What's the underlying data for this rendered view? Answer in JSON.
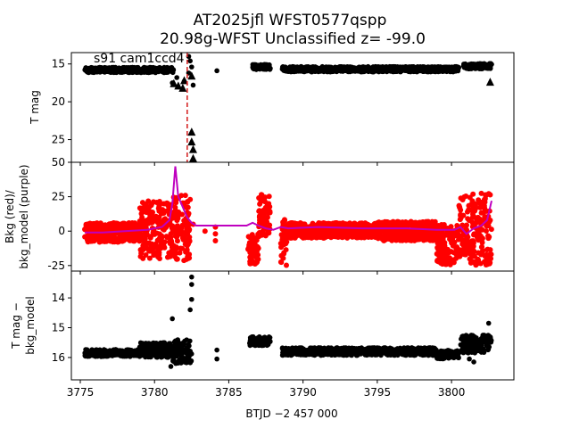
{
  "figure": {
    "title_line1": "AT2025jfl  WFST0577qspp",
    "title_line2": "20.98g-WFST Unclassified z= -99.0",
    "xlabel": "BTJD −2 457 000",
    "annotation": "s91 cam1ccd4"
  },
  "colors": {
    "points": "#000000",
    "bkg_points": "#ff0000",
    "bkg_model": "#bf00bf",
    "marker_line": "#d62728"
  },
  "chart_data": [
    {
      "type": "scatter",
      "panel": "top",
      "ylabel": "T mag",
      "xlim": [
        3774.4,
        3804.2
      ],
      "ylim": [
        28.0,
        13.5
      ],
      "y_inverted": true,
      "xticks": [
        3775,
        3780,
        3785,
        3790,
        3795,
        3800
      ],
      "yticks": [
        15,
        20,
        25
      ],
      "vline_x": 3782.2,
      "segments": [
        {
          "x0": 3775.3,
          "x1": 3781.3,
          "y": 15.8
        },
        {
          "x0": 3786.6,
          "x1": 3787.8,
          "y": 15.4
        },
        {
          "x0": 3788.6,
          "x1": 3800.5,
          "y": 15.7
        },
        {
          "x0": 3800.8,
          "x1": 3802.7,
          "y": 15.3
        }
      ],
      "points": [
        [
          3782.3,
          14.0
        ],
        [
          3782.4,
          14.6
        ],
        [
          3782.5,
          15.4
        ],
        [
          3782.3,
          16.2
        ],
        [
          3784.2,
          15.9
        ],
        [
          3781.5,
          16.8
        ],
        [
          3782.0,
          17.3
        ],
        [
          3781.2,
          17.5
        ],
        [
          3782.6,
          17.8
        ]
      ],
      "upper_limits": [
        [
          3781.3,
          17.6
        ],
        [
          3781.6,
          17.9
        ],
        [
          3781.9,
          18.2
        ],
        [
          3782.0,
          17.2
        ],
        [
          3782.5,
          16.6
        ],
        [
          3782.5,
          24.0
        ],
        [
          3782.5,
          25.3
        ],
        [
          3782.6,
          26.3
        ],
        [
          3782.6,
          27.5
        ],
        [
          3802.6,
          17.4
        ]
      ]
    },
    {
      "type": "scatter",
      "panel": "middle",
      "ylabel": "Bkg (red)/ bkg_model (purple)",
      "ylabel_line1": "Bkg (red)/",
      "ylabel_line2": "bkg_model (purple)",
      "xlim": [
        3774.4,
        3804.2
      ],
      "ylim": [
        -29,
        50
      ],
      "xticks": [
        3775,
        3780,
        3785,
        3790,
        3795,
        3800
      ],
      "yticks": [
        -25,
        0,
        25,
        50
      ],
      "model_line": [
        [
          3775.3,
          -1
        ],
        [
          3776.5,
          -1
        ],
        [
          3778.0,
          0
        ],
        [
          3779.5,
          1
        ],
        [
          3780.5,
          3
        ],
        [
          3781.0,
          8
        ],
        [
          3781.2,
          20
        ],
        [
          3781.4,
          47
        ],
        [
          3781.6,
          25
        ],
        [
          3781.8,
          20
        ],
        [
          3782.0,
          15
        ],
        [
          3782.2,
          10
        ],
        [
          3782.5,
          6
        ],
        [
          3782.8,
          4
        ],
        [
          3786.2,
          4
        ],
        [
          3786.6,
          6
        ],
        [
          3787.0,
          4
        ],
        [
          3787.5,
          2
        ],
        [
          3788.0,
          1
        ],
        [
          3788.5,
          3
        ],
        [
          3789.0,
          2
        ],
        [
          3791.0,
          3
        ],
        [
          3794.0,
          2
        ],
        [
          3797.0,
          2
        ],
        [
          3799.0,
          1
        ],
        [
          3799.8,
          1
        ],
        [
          3800.2,
          1
        ],
        [
          3800.6,
          3
        ],
        [
          3801.0,
          -2
        ],
        [
          3801.5,
          2
        ],
        [
          3802.0,
          4
        ],
        [
          3802.4,
          8
        ],
        [
          3802.7,
          22
        ]
      ],
      "bkg_bands": [
        {
          "x0": 3775.3,
          "x1": 3779.0,
          "lo": -8,
          "hi": 6
        },
        {
          "x0": 3779.0,
          "x1": 3781.2,
          "lo": -20,
          "hi": 22
        },
        {
          "x0": 3781.2,
          "x1": 3782.4,
          "lo": -22,
          "hi": 26
        },
        {
          "x0": 3786.3,
          "x1": 3787.0,
          "lo": -24,
          "hi": -2
        },
        {
          "x0": 3787.0,
          "x1": 3787.8,
          "lo": -4,
          "hi": 27
        },
        {
          "x0": 3788.5,
          "x1": 3788.9,
          "lo": -25,
          "hi": 10
        },
        {
          "x0": 3789.0,
          "x1": 3795.0,
          "lo": -5,
          "hi": 6
        },
        {
          "x0": 3795.0,
          "x1": 3799.0,
          "lo": -7,
          "hi": 7
        },
        {
          "x0": 3799.0,
          "x1": 3800.5,
          "lo": -25,
          "hi": 5
        },
        {
          "x0": 3800.5,
          "x1": 3802.7,
          "lo": -25,
          "hi": 28
        }
      ],
      "bkg_points": [
        [
          3784.1,
          -2
        ],
        [
          3784.1,
          3
        ],
        [
          3784.1,
          -7
        ],
        [
          3783.4,
          0
        ],
        [
          3782.6,
          5
        ]
      ]
    },
    {
      "type": "scatter",
      "panel": "bottom",
      "ylabel": "T mag − bkg_model",
      "ylabel_line1": "T mag −",
      "ylabel_line2": "bkg_model",
      "xlim": [
        3774.4,
        3804.2
      ],
      "ylim": [
        16.75,
        13.1
      ],
      "y_inverted": true,
      "xticks": [
        3775,
        3780,
        3785,
        3790,
        3795,
        3800
      ],
      "yticks": [
        14,
        15,
        16
      ],
      "segments": [
        {
          "x0": 3775.3,
          "x1": 3779.0,
          "y": 15.85,
          "spread": 0.12
        },
        {
          "x0": 3779.0,
          "x1": 3781.2,
          "y": 15.75,
          "spread": 0.25
        },
        {
          "x0": 3781.2,
          "x1": 3782.5,
          "y": 15.8,
          "spread": 0.4
        },
        {
          "x0": 3786.4,
          "x1": 3787.8,
          "y": 15.45,
          "spread": 0.15
        },
        {
          "x0": 3788.6,
          "x1": 3799.0,
          "y": 15.8,
          "spread": 0.13
        },
        {
          "x0": 3799.0,
          "x1": 3800.5,
          "y": 15.9,
          "spread": 0.15
        },
        {
          "x0": 3800.6,
          "x1": 3802.7,
          "y": 15.55,
          "spread": 0.3
        }
      ],
      "points": [
        [
          3782.5,
          13.3
        ],
        [
          3782.5,
          13.55
        ],
        [
          3782.5,
          14.05
        ],
        [
          3782.4,
          14.4
        ],
        [
          3781.2,
          14.7
        ],
        [
          3784.2,
          15.75
        ],
        [
          3784.2,
          16.05
        ],
        [
          3781.1,
          16.3
        ],
        [
          3782.2,
          16.1
        ],
        [
          3801.5,
          16.15
        ],
        [
          3801.2,
          16.05
        ],
        [
          3802.5,
          14.85
        ]
      ]
    }
  ]
}
